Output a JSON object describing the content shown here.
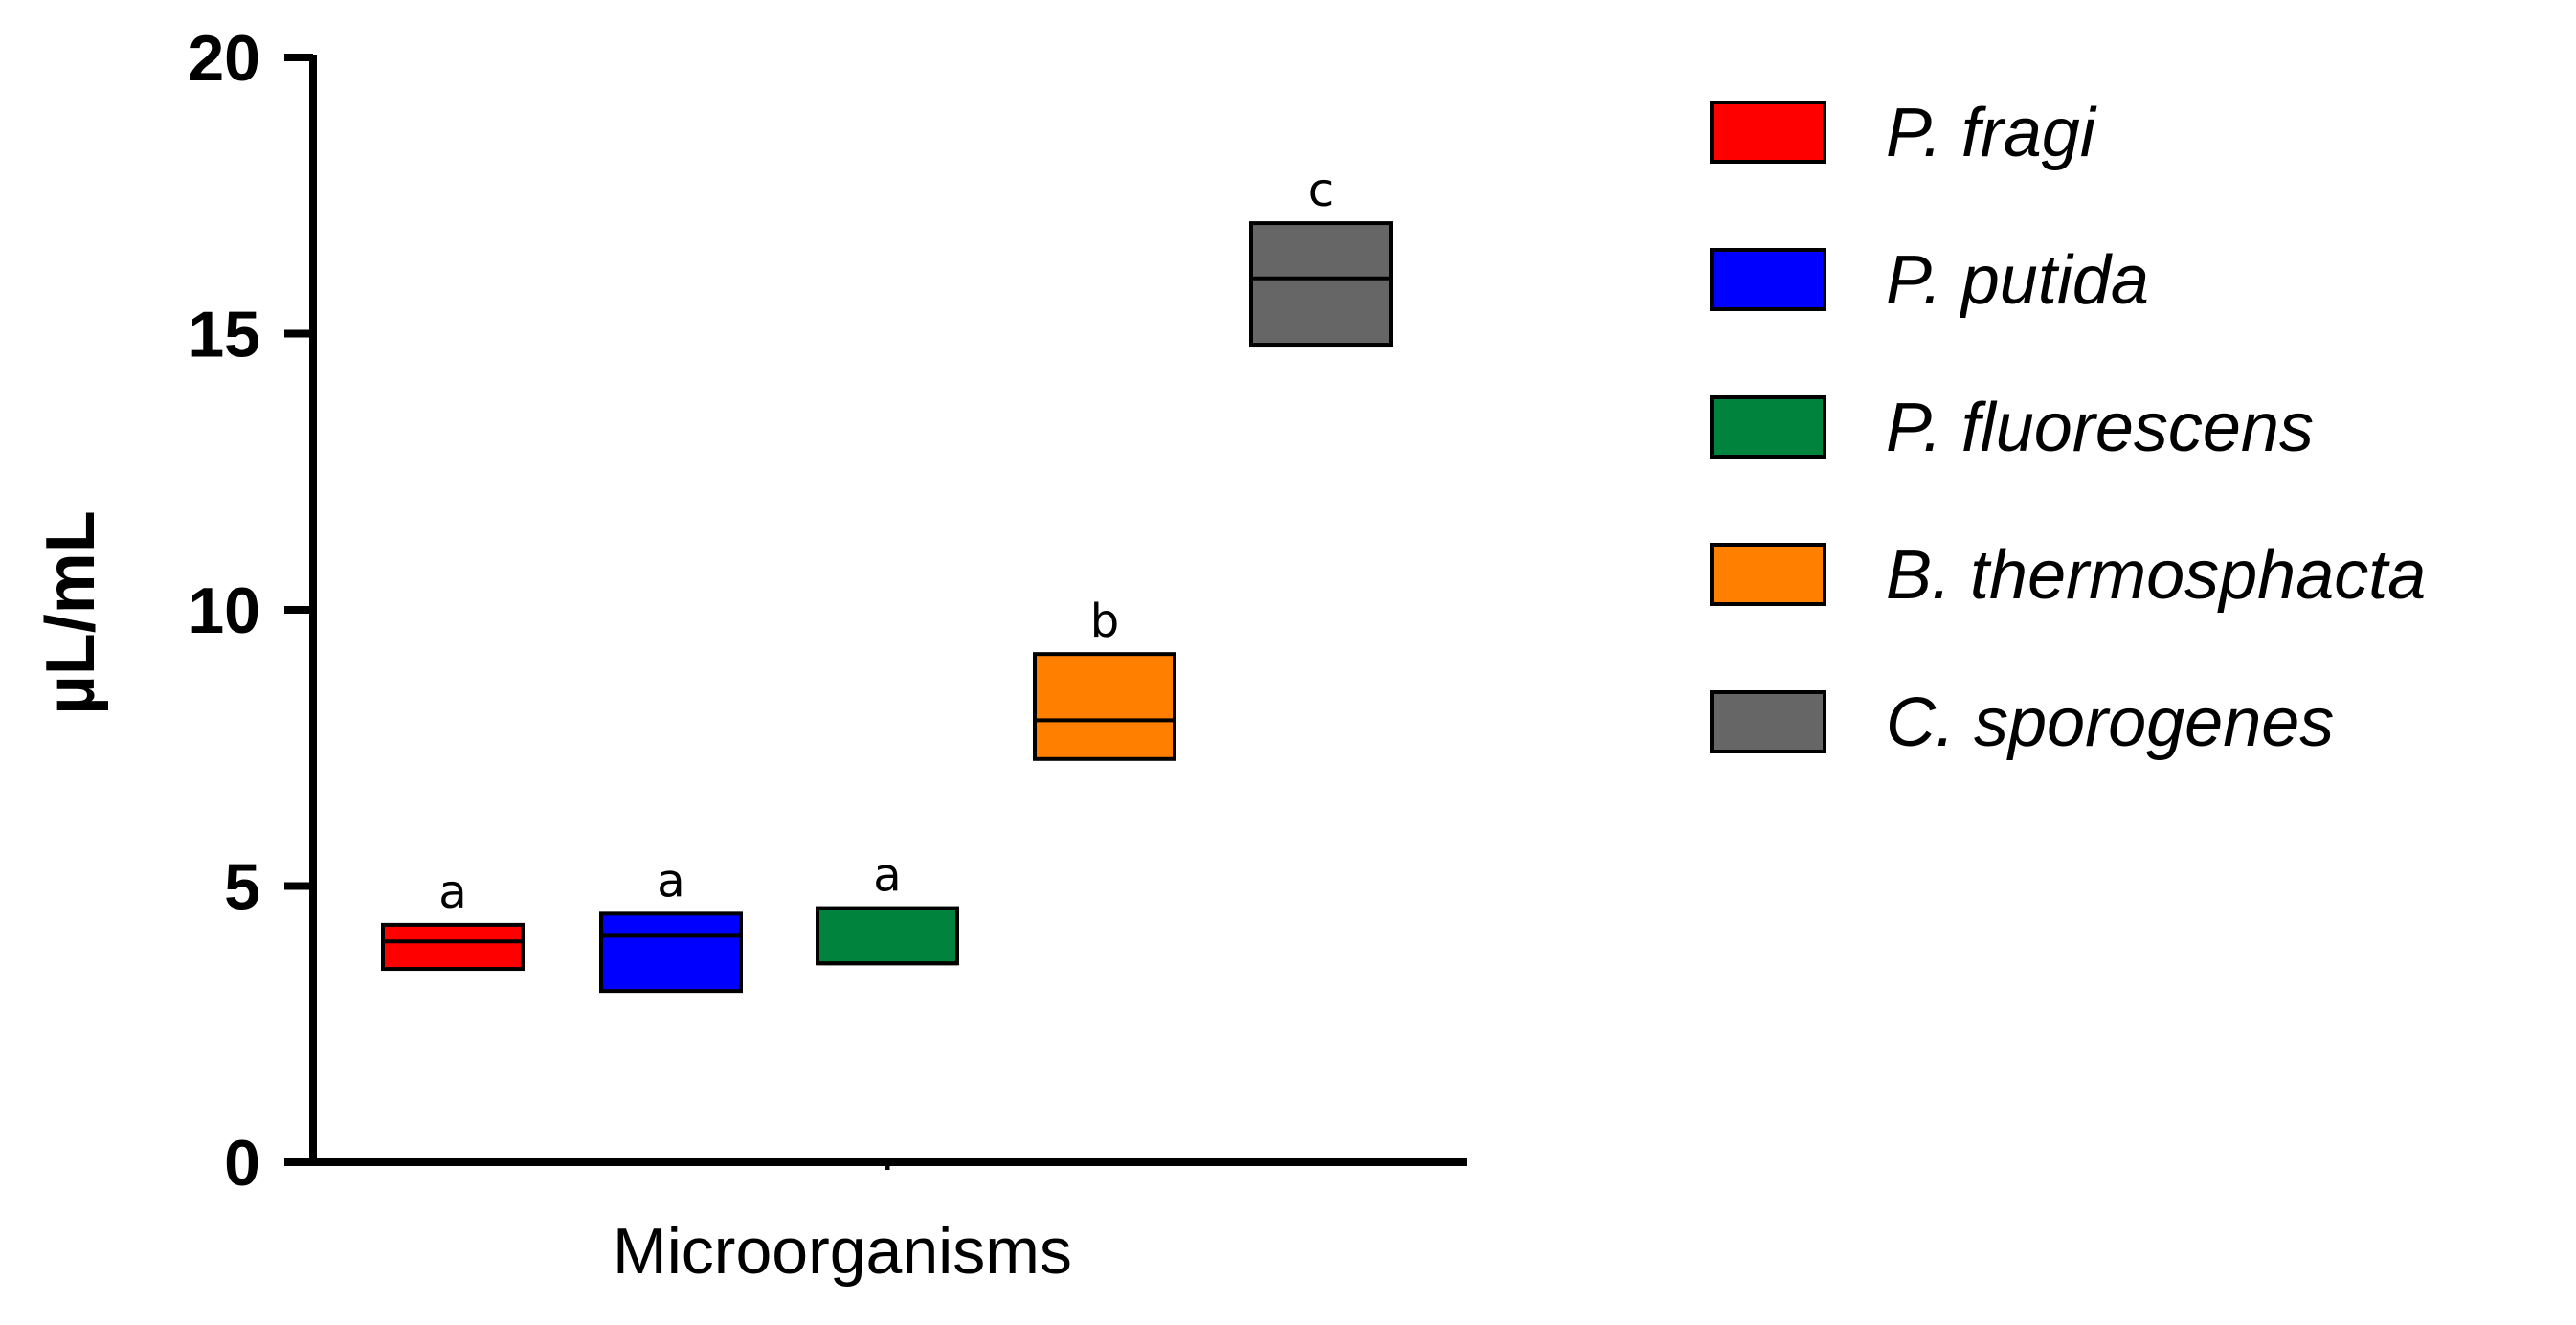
{
  "chart_data": {
    "type": "box",
    "xlabel": "Microorganisms",
    "ylabel": "µL/mL",
    "ylim": [
      0,
      20
    ],
    "yticks": [
      "0",
      "5",
      "10",
      "15",
      "20"
    ],
    "grid": false,
    "legend_position": "right",
    "series": [
      {
        "name": "P. fragi",
        "color": "#ff0000",
        "low": 3.5,
        "median": 4.0,
        "high": 4.3,
        "group_label": "a"
      },
      {
        "name": "P. putida",
        "color": "#0000ff",
        "low": 3.1,
        "median": 4.1,
        "high": 4.5,
        "group_label": "a"
      },
      {
        "name": "P. fluorescens",
        "color": "#00843d",
        "low": 3.6,
        "median": 3.6,
        "high": 4.6,
        "group_label": "a"
      },
      {
        "name": "B. thermosphacta",
        "color": "#ff8000",
        "low": 7.3,
        "median": 8.0,
        "high": 9.2,
        "group_label": "b"
      },
      {
        "name": "C. sporogenes",
        "color": "#666666",
        "low": 14.8,
        "median": 16.0,
        "high": 17.0,
        "group_label": "c"
      }
    ]
  }
}
